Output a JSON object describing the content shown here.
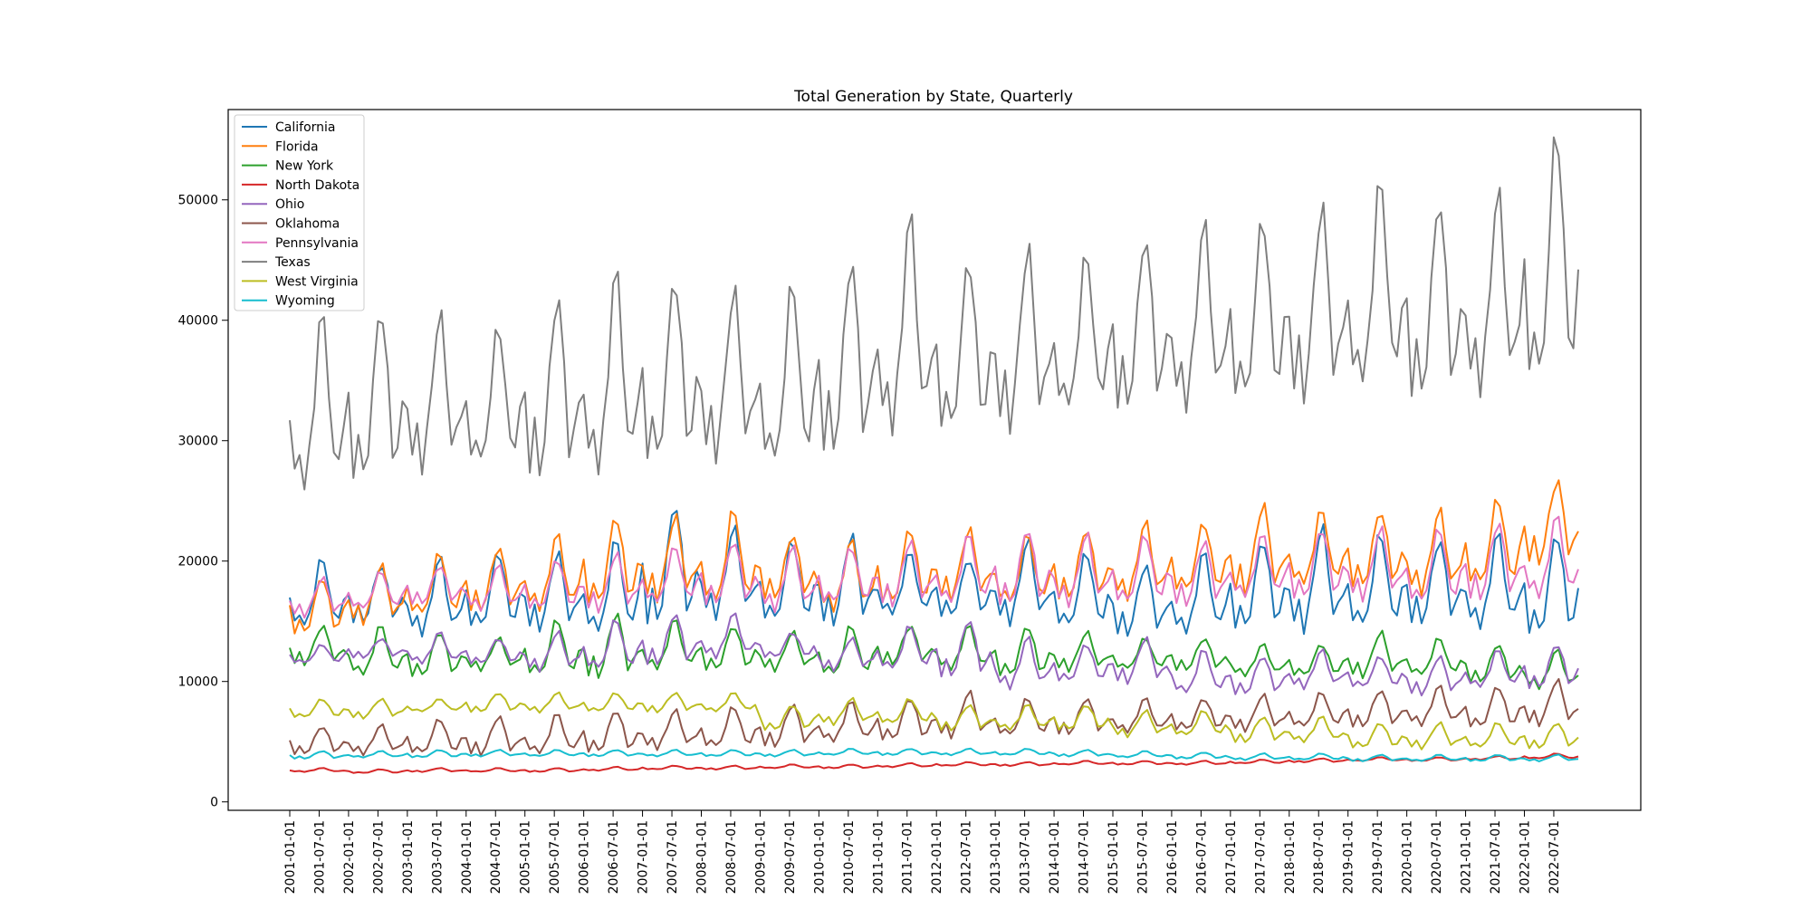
{
  "chart_data": {
    "type": "line",
    "title": "Total Generation by State, Quarterly",
    "xlabel": "",
    "ylabel": "",
    "x_start": "2001-01",
    "x_end": "2022-12",
    "x_tick_labels": [
      "2001-01-01",
      "2001-07-01",
      "2002-01-01",
      "2002-07-01",
      "2003-01-01",
      "2003-07-01",
      "2004-01-01",
      "2004-07-01",
      "2005-01-01",
      "2005-07-01",
      "2006-01-01",
      "2006-07-01",
      "2007-01-01",
      "2007-07-01",
      "2008-01-01",
      "2008-07-01",
      "2009-01-01",
      "2009-07-01",
      "2010-01-01",
      "2010-07-01",
      "2011-01-01",
      "2011-07-01",
      "2012-01-01",
      "2012-07-01",
      "2013-01-01",
      "2013-07-01",
      "2014-01-01",
      "2014-07-01",
      "2015-01-01",
      "2015-07-01",
      "2016-01-01",
      "2016-07-01",
      "2017-01-01",
      "2017-07-01",
      "2018-01-01",
      "2018-07-01",
      "2019-01-01",
      "2019-07-01",
      "2020-01-01",
      "2020-07-01",
      "2021-01-01",
      "2021-07-01",
      "2022-01-01",
      "2022-07-01"
    ],
    "y_ticks": [
      0,
      10000,
      20000,
      30000,
      40000,
      50000
    ],
    "ylim": [
      -700,
      57500
    ],
    "grid": false,
    "legend_position": "upper-left",
    "legend_items": [
      "California",
      "Florida",
      "New York",
      "North Dakota",
      "Ohio",
      "Oklahoma",
      "Pennsylvania",
      "Texas",
      "West Virginia",
      "Wyoming"
    ],
    "series_note_pattern": "monthly values approximated from per-season anchors",
    "series": [
      {
        "name": "California",
        "color": "#1f77b4",
        "winter": [
          14500,
          15000,
          14000,
          14500,
          14500,
          14000,
          15000,
          15500,
          15000,
          15000,
          15500,
          15500,
          15000,
          14500,
          14000,
          14000,
          14500,
          14500,
          14500,
          15000,
          14500,
          14000
        ],
        "summer": [
          20000,
          19500,
          20000,
          20500,
          20500,
          21500,
          24500,
          22500,
          21500,
          22000,
          20500,
          20000,
          21500,
          20500,
          19500,
          20500,
          21500,
          22500,
          22000,
          21500,
          22000,
          22000
        ]
      },
      {
        "name": "Florida",
        "color": "#ff7f0e",
        "winter": [
          14000,
          15000,
          15500,
          16000,
          16000,
          16500,
          17000,
          16500,
          17000,
          16000,
          16500,
          17000,
          16500,
          17000,
          17000,
          17500,
          17500,
          18000,
          18000,
          17500,
          18000,
          20000
        ],
        "summer": [
          18500,
          19500,
          20500,
          21000,
          22000,
          23500,
          23500,
          24000,
          22000,
          21500,
          22500,
          22500,
          22000,
          22500,
          23000,
          23000,
          24500,
          24000,
          24000,
          24000,
          25000,
          26500
        ]
      },
      {
        "name": "New York",
        "color": "#2ca02c",
        "winter": [
          11500,
          10500,
          10500,
          11000,
          10500,
          10500,
          11000,
          11000,
          11000,
          10500,
          11500,
          11000,
          10500,
          11000,
          11000,
          11000,
          10500,
          10500,
          10500,
          10500,
          10000,
          9500
        ],
        "summer": [
          14500,
          14500,
          14000,
          13500,
          15000,
          15500,
          15000,
          14500,
          14000,
          14500,
          14500,
          14500,
          14500,
          14000,
          13500,
          13500,
          13000,
          13000,
          14000,
          13500,
          13000,
          12500
        ]
      },
      {
        "name": "North Dakota",
        "color": "#d62728",
        "winter": [
          2500,
          2400,
          2500,
          2500,
          2500,
          2600,
          2700,
          2700,
          2800,
          2800,
          2900,
          3000,
          3000,
          3100,
          3100,
          3100,
          3200,
          3300,
          3400,
          3400,
          3500,
          3600
        ],
        "summer": [
          2800,
          2700,
          2800,
          2800,
          2800,
          2900,
          3000,
          3000,
          3100,
          3100,
          3200,
          3300,
          3300,
          3400,
          3400,
          3400,
          3500,
          3600,
          3700,
          3700,
          3800,
          4000
        ]
      },
      {
        "name": "Ohio",
        "color": "#9467bd",
        "winter": [
          11500,
          12000,
          11500,
          11500,
          11000,
          11000,
          11500,
          12000,
          12000,
          11000,
          11000,
          10500,
          9500,
          10000,
          10000,
          9000,
          9000,
          9500,
          9500,
          9000,
          9500,
          9500
        ],
        "summer": [
          13000,
          13500,
          14000,
          13500,
          14000,
          15000,
          15500,
          15500,
          14000,
          13500,
          14500,
          15000,
          13500,
          13000,
          13500,
          12500,
          12000,
          12500,
          12000,
          12000,
          12500,
          13000
        ]
      },
      {
        "name": "Oklahoma",
        "color": "#8c564b",
        "winter": [
          4000,
          4000,
          4000,
          4000,
          4000,
          4200,
          4500,
          4500,
          4700,
          5000,
          5200,
          5500,
          5500,
          5700,
          5800,
          6000,
          6000,
          6200,
          6300,
          6400,
          6200,
          6500
        ],
        "summer": [
          6200,
          6300,
          6800,
          7000,
          7200,
          7500,
          7500,
          7800,
          8000,
          8200,
          8500,
          9000,
          8500,
          8500,
          8500,
          8500,
          8800,
          9000,
          9200,
          9500,
          9500,
          10000
        ]
      },
      {
        "name": "Pennsylvania",
        "color": "#e377c2",
        "winter": [
          15500,
          16000,
          16500,
          16000,
          16000,
          16000,
          16500,
          16500,
          16000,
          16500,
          16500,
          16500,
          16500,
          16500,
          16500,
          16500,
          17000,
          17000,
          17000,
          16500,
          17000,
          17000
        ],
        "summer": [
          18500,
          19000,
          19500,
          19500,
          20000,
          20500,
          21000,
          21500,
          21000,
          21000,
          21500,
          22000,
          22500,
          22000,
          22000,
          21500,
          22000,
          22500,
          22500,
          22500,
          23000,
          23500
        ]
      },
      {
        "name": "Texas",
        "color": "#7f7f7f",
        "winter": [
          26000,
          27000,
          28000,
          28000,
          27500,
          27500,
          28500,
          29000,
          28000,
          29500,
          31000,
          31000,
          31500,
          32500,
          33000,
          33000,
          33500,
          34000,
          34500,
          34000,
          34500,
          35000
        ],
        "summer": [
          40000,
          40500,
          40000,
          39000,
          41500,
          43500,
          43000,
          42000,
          42500,
          44500,
          48000,
          44500,
          45500,
          45000,
          46500,
          47500,
          48000,
          49000,
          51000,
          49500,
          50000,
          55000
        ]
      },
      {
        "name": "West Virginia",
        "color": "#bcbd22",
        "winter": [
          7000,
          7000,
          7500,
          7500,
          7500,
          7500,
          7500,
          7500,
          6000,
          6500,
          6500,
          6000,
          6000,
          6000,
          5500,
          5500,
          5000,
          5000,
          4500,
          4500,
          4500,
          4500
        ],
        "summer": [
          8500,
          8500,
          8500,
          9000,
          9000,
          9000,
          9000,
          9000,
          8000,
          8500,
          8500,
          8000,
          8000,
          8000,
          7500,
          7500,
          7000,
          7000,
          6500,
          6500,
          6500,
          6500
        ]
      },
      {
        "name": "Wyoming",
        "color": "#17becf",
        "winter": [
          3600,
          3700,
          3700,
          3800,
          3800,
          3800,
          3800,
          3800,
          3800,
          3900,
          3900,
          3900,
          3900,
          3800,
          3700,
          3600,
          3500,
          3500,
          3400,
          3400,
          3400,
          3400
        ],
        "summer": [
          4200,
          4200,
          4300,
          4300,
          4300,
          4300,
          4300,
          4300,
          4300,
          4400,
          4400,
          4400,
          4400,
          4300,
          4200,
          4100,
          4000,
          4000,
          3900,
          3900,
          3900,
          3900
        ]
      }
    ]
  }
}
